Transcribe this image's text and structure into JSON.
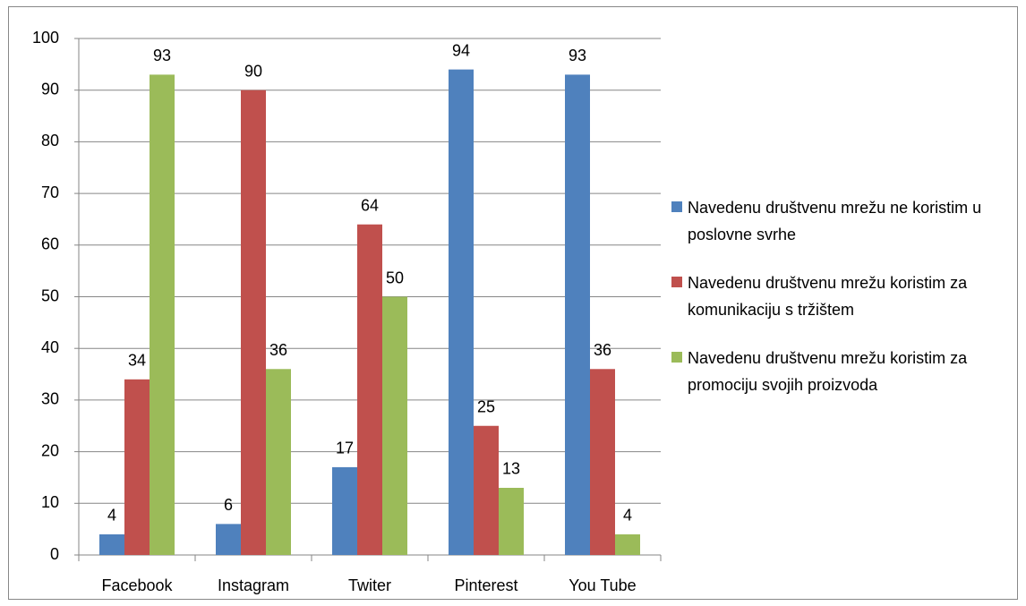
{
  "chart_data": {
    "type": "bar",
    "categories": [
      "Facebook",
      "Instagram",
      "Twiter",
      "Pinterest",
      "You Tube"
    ],
    "series": [
      {
        "name": "Navedenu društvenu mrežu ne koristim u poslovne svrhe",
        "color": "#4f81bd",
        "values": [
          4,
          6,
          17,
          94,
          93
        ]
      },
      {
        "name": "Navedenu društvenu mrežu koristim za komunikaciju s tržištem",
        "color": "#c0504d",
        "values": [
          34,
          90,
          64,
          25,
          36
        ]
      },
      {
        "name": "Navedenu društvenu mrežu koristim za promociju svojih proizvoda",
        "color": "#9bbb59",
        "values": [
          93,
          36,
          50,
          13,
          4
        ]
      }
    ],
    "ylim": [
      0,
      100
    ],
    "yticks": [
      0,
      10,
      20,
      30,
      40,
      50,
      60,
      70,
      80,
      90,
      100
    ],
    "grid": true,
    "legend": "right",
    "data_labels": true
  }
}
